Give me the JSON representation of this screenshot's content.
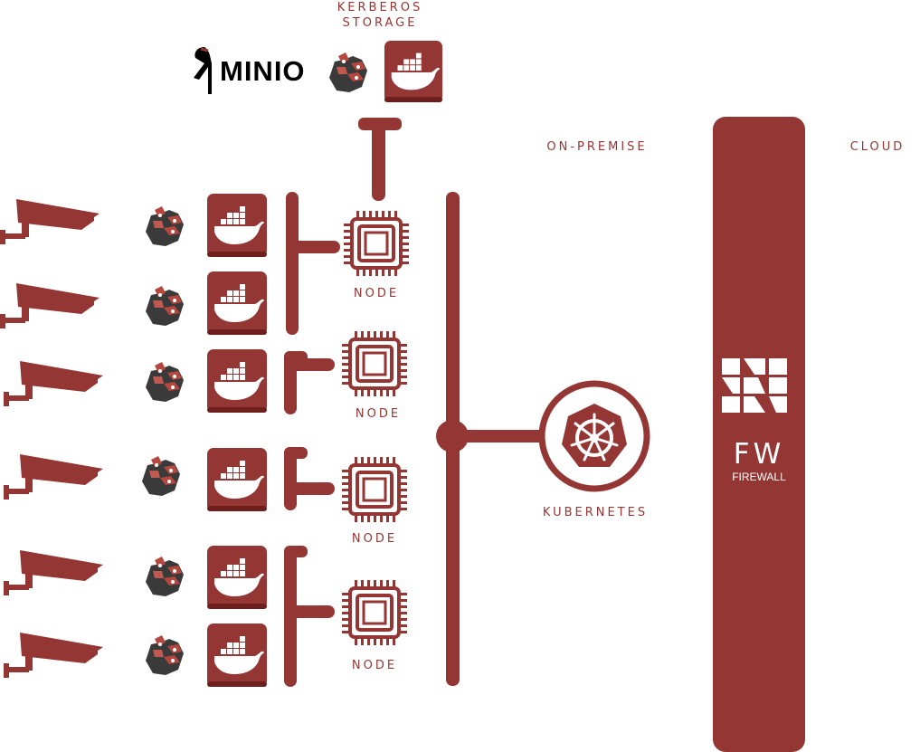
{
  "labels": {
    "storage_line1": "KERBEROS",
    "storage_line2": "STORAGE",
    "on_premise": "ON-PREMISE",
    "cloud": "CLOUD",
    "node": "NODE",
    "kubernetes": "KUBERNETES",
    "fw": "FW",
    "firewall": "FIREWALL",
    "minio": "MINIO"
  },
  "colors": {
    "accent": "#943633",
    "mascot_dark": "#3a3a3a",
    "mascot_red": "#b5473f",
    "white": "#ffffff",
    "black": "#000000"
  },
  "icons": {
    "camera": "security-camera-icon",
    "mascot": "kerberos-mascot-icon",
    "container": "docker-icon",
    "node": "cpu-chip-icon",
    "orchestrator": "kubernetes-icon",
    "firewall": "firewall-logo-icon",
    "storage": "minio-logo-icon"
  },
  "rows": 6,
  "nodes": 4
}
